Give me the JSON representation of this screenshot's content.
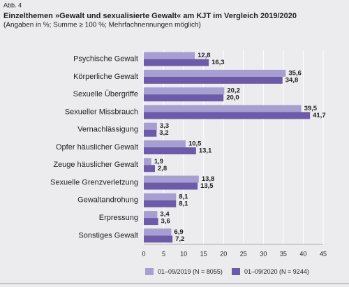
{
  "header": "Abb. 4",
  "chart_data": {
    "type": "hbar",
    "title": "Einzelthemen »Gewalt und sexualisierte Gewalt« am KJT im Vergleich 2019/2020",
    "subtitle": "(Angaben in %; Summe ≥ 100 %; Mehrfachnennungen möglich)",
    "categories": [
      "Psychische Gewalt",
      "Körperliche Gewalt",
      "Sexuelle Übergriffe",
      "Sexueller Missbrauch",
      "Vernachlässigung",
      "Opfer häuslicher Gewalt",
      "Zeuge häuslicher Gewalt",
      "Sexuelle Grenzverletzung",
      "Gewaltandrohung",
      "Erpressung",
      "Sonstiges Gewalt"
    ],
    "series": [
      {
        "name": "01–09/2019 (N = 8055)",
        "color": "#a79fd1",
        "values": [
          12.8,
          35.6,
          20.2,
          39.5,
          3.3,
          10.5,
          1.9,
          13.8,
          8.1,
          3.4,
          6.9
        ],
        "value_labels": [
          "12,8",
          "35,6",
          "20,2",
          "39,5",
          "3,3",
          "10,5",
          "1,9",
          "13,8",
          "8,1",
          "3,4",
          "6,9"
        ]
      },
      {
        "name": "01–09/2020 (N = 9244)",
        "color": "#6c5ba9",
        "values": [
          16.3,
          34.8,
          20.0,
          41.7,
          3.2,
          13.1,
          2.8,
          13.5,
          8.1,
          3.6,
          7.2
        ],
        "value_labels": [
          "16,3",
          "34,8",
          "20,0",
          "41,7",
          "3,2",
          "13,1",
          "2,8",
          "13,5",
          "8,1",
          "3,6",
          "7,2"
        ]
      }
    ],
    "xlim": [
      0,
      45
    ],
    "xticks": [
      0,
      5,
      10,
      15,
      20,
      25,
      30,
      35,
      40,
      45
    ],
    "grid": true,
    "legend": "bottom"
  }
}
